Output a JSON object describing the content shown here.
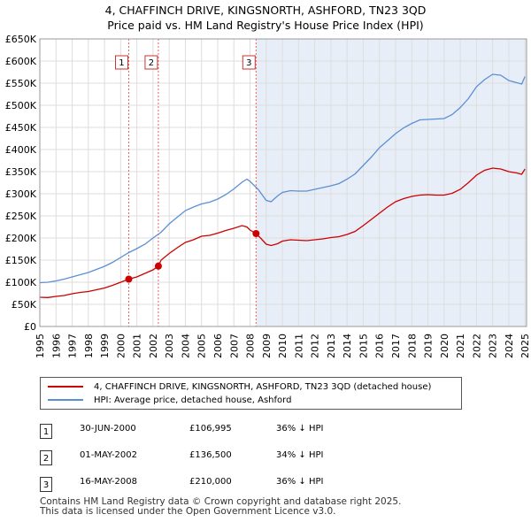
{
  "chart_data": {
    "type": "line",
    "title": "4, CHAFFINCH DRIVE, KINGSNORTH, ASHFORD, TN23 3QD",
    "subtitle": "Price paid vs. HM Land Registry's House Price Index (HPI)",
    "xlabel": "",
    "ylabel": "",
    "xlim": [
      1995,
      2025.1
    ],
    "ylim": [
      0,
      650000
    ],
    "x_ticks": [
      1995,
      1996,
      1997,
      1998,
      1999,
      2000,
      2001,
      2002,
      2003,
      2004,
      2005,
      2006,
      2007,
      2008,
      2009,
      2010,
      2011,
      2012,
      2013,
      2014,
      2015,
      2016,
      2017,
      2018,
      2019,
      2020,
      2021,
      2022,
      2023,
      2024,
      2025
    ],
    "y_ticks": [
      0,
      50000,
      100000,
      150000,
      200000,
      250000,
      300000,
      350000,
      400000,
      450000,
      500000,
      550000,
      600000,
      650000
    ],
    "y_tick_labels": [
      "£0",
      "£50K",
      "£100K",
      "£150K",
      "£200K",
      "£250K",
      "£300K",
      "£350K",
      "£400K",
      "£450K",
      "£500K",
      "£550K",
      "£600K",
      "£650K"
    ],
    "grid": true,
    "series": [
      {
        "name": "4, CHAFFINCH DRIVE, KINGSNORTH, ASHFORD, TN23 3QD (detached house)",
        "color": "#cc0000",
        "x": [
          1995.0,
          1995.5,
          1996.0,
          1996.5,
          1997.0,
          1997.5,
          1998.0,
          1998.5,
          1999.0,
          1999.5,
          2000.0,
          2000.5,
          2001.0,
          2001.5,
          2002.0,
          2002.33,
          2002.5,
          2003.0,
          2003.5,
          2004.0,
          2004.5,
          2005.0,
          2005.5,
          2006.0,
          2006.5,
          2007.0,
          2007.5,
          2007.8,
          2008.0,
          2008.37,
          2008.7,
          2009.0,
          2009.3,
          2009.7,
          2010.0,
          2010.5,
          2011.0,
          2011.5,
          2012.0,
          2012.5,
          2013.0,
          2013.5,
          2014.0,
          2014.5,
          2015.0,
          2015.5,
          2016.0,
          2016.5,
          2017.0,
          2017.5,
          2018.0,
          2018.5,
          2019.0,
          2019.5,
          2020.0,
          2020.5,
          2021.0,
          2021.5,
          2022.0,
          2022.5,
          2023.0,
          2023.5,
          2024.0,
          2024.5,
          2024.8,
          2025.0
        ],
        "values": [
          66000,
          65500,
          68000,
          70000,
          74000,
          77000,
          79000,
          83000,
          87000,
          93000,
          100000,
          106995,
          112000,
          120000,
          128000,
          136500,
          150000,
          165000,
          178000,
          190000,
          196000,
          204000,
          206000,
          211000,
          217000,
          222000,
          228000,
          225000,
          218000,
          210000,
          198000,
          186000,
          183000,
          187000,
          193000,
          196000,
          195000,
          194000,
          196000,
          198000,
          201000,
          203000,
          208000,
          215000,
          228000,
          242000,
          256000,
          270000,
          282000,
          289000,
          294000,
          297000,
          298000,
          297000,
          297000,
          301000,
          310000,
          325000,
          342000,
          353000,
          358000,
          356000,
          350000,
          347000,
          344000,
          356000
        ],
        "markers": [
          {
            "label": "1",
            "x": 2000.5,
            "value": 106995
          },
          {
            "label": "2",
            "x": 2002.33,
            "value": 136500
          },
          {
            "label": "3",
            "x": 2008.37,
            "value": 210000
          }
        ]
      },
      {
        "name": "HPI: Average price, detached house, Ashford",
        "color": "#5b8fd4",
        "x": [
          1995.0,
          1995.5,
          1996.0,
          1996.5,
          1997.0,
          1997.5,
          1998.0,
          1998.5,
          1999.0,
          1999.5,
          2000.0,
          2000.5,
          2001.0,
          2001.5,
          2002.0,
          2002.5,
          2003.0,
          2003.5,
          2004.0,
          2004.5,
          2005.0,
          2005.5,
          2006.0,
          2006.5,
          2007.0,
          2007.5,
          2007.8,
          2008.0,
          2008.5,
          2009.0,
          2009.3,
          2009.7,
          2010.0,
          2010.5,
          2011.0,
          2011.5,
          2012.0,
          2012.5,
          2013.0,
          2013.5,
          2014.0,
          2014.5,
          2015.0,
          2015.5,
          2016.0,
          2016.5,
          2017.0,
          2017.5,
          2018.0,
          2018.5,
          2019.0,
          2019.5,
          2020.0,
          2020.5,
          2021.0,
          2021.5,
          2022.0,
          2022.5,
          2023.0,
          2023.5,
          2024.0,
          2024.5,
          2024.8,
          2025.0
        ],
        "values": [
          99000,
          100000,
          103000,
          107000,
          112000,
          117000,
          122000,
          129000,
          136000,
          145000,
          156000,
          167000,
          176000,
          186000,
          200000,
          213000,
          232000,
          247000,
          262000,
          270000,
          277000,
          281000,
          288000,
          298000,
          311000,
          326000,
          333000,
          328000,
          310000,
          285000,
          282000,
          295000,
          303000,
          307000,
          306000,
          306000,
          310000,
          314000,
          318000,
          323000,
          333000,
          345000,
          364000,
          383000,
          404000,
          420000,
          436000,
          449000,
          459000,
          467000,
          468000,
          469000,
          470000,
          479000,
          495000,
          515000,
          542000,
          558000,
          570000,
          568000,
          556000,
          551000,
          548000,
          565000
        ]
      }
    ],
    "sale_lines_x": [
      2000.5,
      2002.33,
      2008.37
    ]
  },
  "legend": {
    "property_label": "4, CHAFFINCH DRIVE, KINGSNORTH, ASHFORD, TN23 3QD (detached house)",
    "hpi_label": "HPI: Average price, detached house, Ashford"
  },
  "transactions": [
    {
      "num": "1",
      "date": "30-JUN-2000",
      "price": "£106,995",
      "diff": "36% ↓ HPI"
    },
    {
      "num": "2",
      "date": "01-MAY-2002",
      "price": "£136,500",
      "diff": "34% ↓ HPI"
    },
    {
      "num": "3",
      "date": "16-MAY-2008",
      "price": "£210,000",
      "diff": "36% ↓ HPI"
    }
  ],
  "footer": {
    "line1": "Contains HM Land Registry data © Crown copyright and database right 2025.",
    "line2": "This data is licensed under the Open Government Licence v3.0."
  }
}
